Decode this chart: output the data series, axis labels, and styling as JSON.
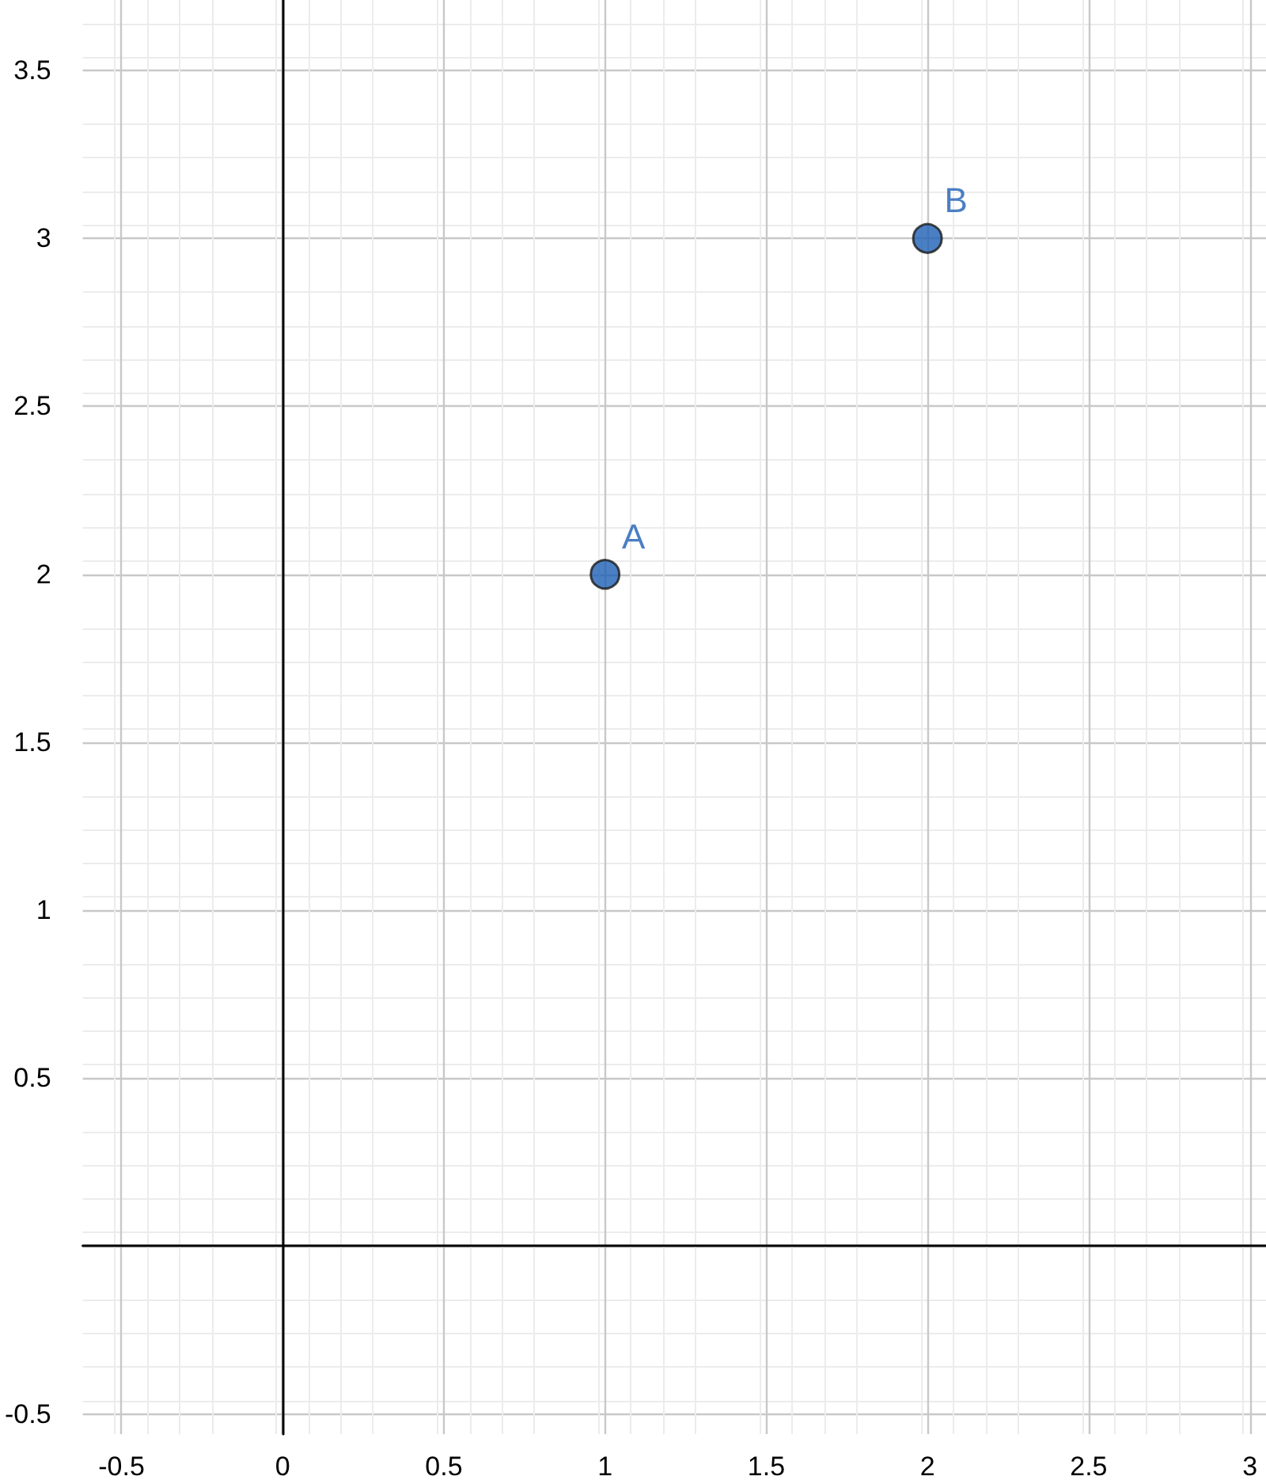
{
  "chart_data": {
    "type": "scatter",
    "marker": "circle",
    "grid": true,
    "x": [
      1,
      2
    ],
    "values": [
      2,
      3
    ],
    "color": "#1e5fb4",
    "xlim": [
      -0.62,
      3.05
    ],
    "ylim": [
      -0.56,
      3.71
    ],
    "xticks": [
      -0.5,
      0,
      0.5,
      1,
      1.5,
      2,
      2.5,
      3
    ],
    "yticks": [
      -0.5,
      {
        "value": 0,
        "label": null
      },
      0.5,
      1,
      1.5,
      2,
      2.5,
      3,
      3.5
    ],
    "annotations": [
      {
        "text": "A",
        "x": 1,
        "y": 2
      },
      {
        "text": "B",
        "x": 2,
        "y": 3
      }
    ]
  }
}
